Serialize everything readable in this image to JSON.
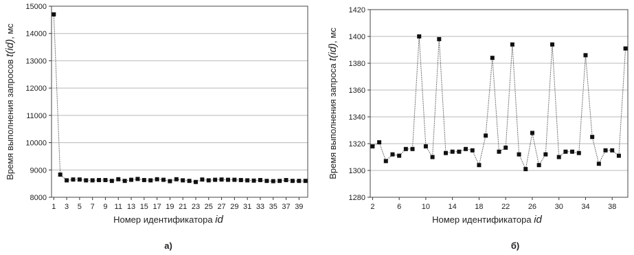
{
  "chart_data": [
    {
      "type": "line",
      "panel_label": "а)",
      "xlabel_prefix": "Номер идентификатора ",
      "xlabel_var": "id",
      "ylabel_prefix": "Время выполнения запросов ",
      "ylabel_var": "t(id)",
      "ylabel_suffix": ", мс",
      "ylim": [
        8000,
        15000
      ],
      "yticks": [
        8000,
        9000,
        10000,
        11000,
        12000,
        13000,
        14000,
        15000
      ],
      "xlim": [
        1,
        40
      ],
      "xticks": [
        1,
        3,
        5,
        7,
        9,
        11,
        13,
        15,
        17,
        19,
        21,
        23,
        25,
        27,
        29,
        31,
        33,
        35,
        37,
        39
      ],
      "grid": true,
      "series": [
        {
          "x": [
            1,
            2,
            3,
            4,
            5,
            6,
            7,
            8,
            9,
            10,
            11,
            12,
            13,
            14,
            15,
            16,
            17,
            18,
            19,
            20,
            21,
            22,
            23,
            24,
            25,
            26,
            27,
            28,
            29,
            30,
            31,
            32,
            33,
            34,
            35,
            36,
            37,
            38,
            39,
            40
          ],
          "y": [
            14700,
            8830,
            8620,
            8650,
            8650,
            8620,
            8620,
            8630,
            8630,
            8600,
            8660,
            8600,
            8640,
            8670,
            8630,
            8620,
            8660,
            8640,
            8590,
            8660,
            8620,
            8600,
            8560,
            8650,
            8620,
            8640,
            8650,
            8640,
            8640,
            8630,
            8620,
            8610,
            8630,
            8600,
            8590,
            8600,
            8630,
            8600,
            8600,
            8600
          ]
        }
      ]
    },
    {
      "type": "line",
      "panel_label": "б)",
      "xlabel_prefix": "Номер идентификатора ",
      "xlabel_var": "id",
      "ylabel_prefix": "Время выполнения запроса ",
      "ylabel_var": "t(id)",
      "ylabel_suffix": ", мс",
      "ylim": [
        1280,
        1420
      ],
      "yticks": [
        1280,
        1300,
        1320,
        1340,
        1360,
        1380,
        1400,
        1420
      ],
      "xlim": [
        2,
        40
      ],
      "xticks": [
        2,
        6,
        10,
        14,
        18,
        22,
        26,
        30,
        34,
        38
      ],
      "grid": true,
      "series": [
        {
          "x": [
            2,
            3,
            4,
            5,
            6,
            7,
            8,
            9,
            10,
            11,
            12,
            13,
            14,
            15,
            16,
            17,
            18,
            19,
            20,
            21,
            22,
            23,
            24,
            25,
            26,
            27,
            28,
            29,
            30,
            31,
            32,
            33,
            34,
            35,
            36,
            37,
            38,
            39,
            40
          ],
          "y": [
            1318,
            1321,
            1307,
            1312,
            1311,
            1316,
            1316,
            1400,
            1318,
            1310,
            1398,
            1313,
            1314,
            1314,
            1316,
            1315,
            1304,
            1326,
            1384,
            1314,
            1317,
            1394,
            1312,
            1301,
            1328,
            1304,
            1312,
            1394,
            1310,
            1314,
            1314,
            1313,
            1386,
            1325,
            1305,
            1315,
            1315,
            1311,
            1391
          ]
        }
      ]
    }
  ]
}
